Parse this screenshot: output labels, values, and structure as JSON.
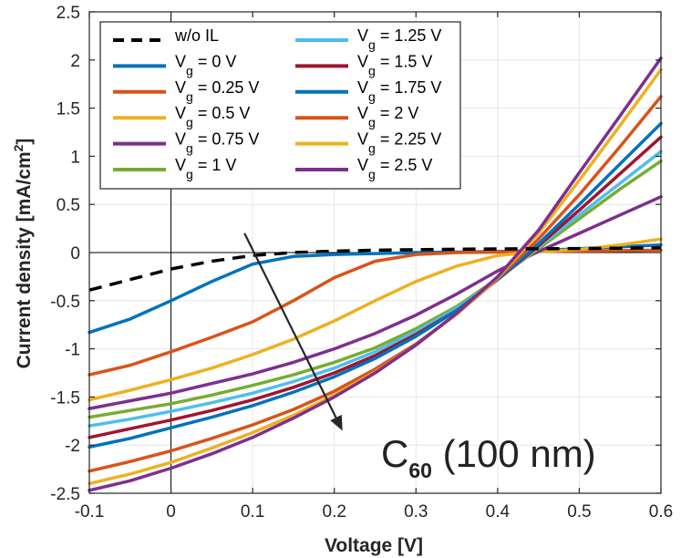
{
  "chart_data": {
    "type": "line",
    "title": "",
    "xlabel": "Voltage [V]",
    "ylabel": "Current density [mA/cm",
    "ylabel_sup": "2",
    "ylabel_end": "]",
    "xlim": [
      -0.1,
      0.6
    ],
    "ylim": [
      -2.5,
      2.5
    ],
    "xticks": [
      -0.1,
      0,
      0.1,
      0.2,
      0.3,
      0.4,
      0.5,
      0.6
    ],
    "yticks": [
      -2.5,
      -2,
      -1.5,
      -1,
      -0.5,
      0,
      0.5,
      1,
      1.5,
      2,
      2.5
    ],
    "xtick_labels": [
      "-0.1",
      "0",
      "0.1",
      "0.2",
      "0.3",
      "0.4",
      "0.5",
      "0.6"
    ],
    "ytick_labels": [
      "-2.5",
      "-2",
      "-1.5",
      "-1",
      "-0.5",
      "0",
      "0.5",
      "1",
      "1.5",
      "2",
      "2.5"
    ],
    "grid": true,
    "legend_position": "top-left",
    "annotation": {
      "text_main": "C",
      "text_sub": "60",
      "text_rest": " (100 nm)"
    },
    "arrow": {
      "from": [
        0.09,
        0.2
      ],
      "to": [
        0.21,
        -1.85
      ]
    },
    "x": [
      -0.1,
      -0.05,
      0,
      0.05,
      0.1,
      0.15,
      0.2,
      0.25,
      0.3,
      0.35,
      0.4,
      0.45,
      0.5,
      0.55,
      0.6
    ],
    "series": [
      {
        "name": "w/o IL",
        "label_main": "w/o IL",
        "label_sub": "",
        "label_rest": "",
        "color": "#000000",
        "dashed": true,
        "values": [
          -0.39,
          -0.28,
          -0.17,
          -0.09,
          -0.03,
          0.0,
          0.015,
          0.025,
          0.03,
          0.035,
          0.038,
          0.04,
          0.042,
          0.045,
          0.05
        ]
      },
      {
        "name": "Vg = 0 V",
        "label_main": "V",
        "label_sub": "g",
        "label_rest": " = 0 V",
        "color": "#0072BD",
        "dashed": false,
        "values": [
          -0.83,
          -0.69,
          -0.5,
          -0.3,
          -0.12,
          -0.04,
          -0.02,
          -0.01,
          0.0,
          0.005,
          0.01,
          0.02,
          0.04,
          0.06,
          0.08
        ]
      },
      {
        "name": "Vg = 0.25 V",
        "label_main": "V",
        "label_sub": "g",
        "label_rest": " = 0.25 V",
        "color": "#D95319",
        "dashed": false,
        "values": [
          -1.27,
          -1.17,
          -1.03,
          -0.88,
          -0.72,
          -0.5,
          -0.26,
          -0.09,
          -0.02,
          0.0,
          0.005,
          0.01,
          0.015,
          0.02,
          0.025
        ]
      },
      {
        "name": "Vg = 0.5 V",
        "label_main": "V",
        "label_sub": "g",
        "label_rest": " = 0.5 V",
        "color": "#EDB120",
        "dashed": false,
        "values": [
          -1.53,
          -1.43,
          -1.32,
          -1.2,
          -1.06,
          -0.9,
          -0.71,
          -0.5,
          -0.3,
          -0.14,
          -0.03,
          0.01,
          0.03,
          0.08,
          0.14
        ]
      },
      {
        "name": "Vg = 0.75 V",
        "label_main": "V",
        "label_sub": "g",
        "label_rest": " = 0.75 V",
        "color": "#7E2F8E",
        "dashed": false,
        "values": [
          -1.62,
          -1.54,
          -1.46,
          -1.36,
          -1.26,
          -1.14,
          -1.0,
          -0.84,
          -0.65,
          -0.43,
          -0.19,
          0.01,
          0.2,
          0.39,
          0.58
        ]
      },
      {
        "name": "Vg = 1 V",
        "label_main": "V",
        "label_sub": "g",
        "label_rest": " = 1 V",
        "color": "#77AC30",
        "dashed": false,
        "values": [
          -1.71,
          -1.64,
          -1.57,
          -1.48,
          -1.38,
          -1.27,
          -1.14,
          -0.99,
          -0.79,
          -0.56,
          -0.27,
          0.04,
          0.35,
          0.66,
          0.95
        ]
      },
      {
        "name": "Vg = 1.25 V",
        "label_main": "V",
        "label_sub": "g",
        "label_rest": " = 1.25 V",
        "color": "#4DBEEE",
        "dashed": false,
        "values": [
          -1.8,
          -1.73,
          -1.65,
          -1.56,
          -1.46,
          -1.34,
          -1.2,
          -1.03,
          -0.82,
          -0.58,
          -0.28,
          0.06,
          0.39,
          0.72,
          1.05
        ]
      },
      {
        "name": "Vg = 1.5 V",
        "label_main": "V",
        "label_sub": "g",
        "label_rest": " = 1.5 V",
        "color": "#A2142F",
        "dashed": false,
        "values": [
          -1.92,
          -1.83,
          -1.74,
          -1.64,
          -1.53,
          -1.4,
          -1.25,
          -1.07,
          -0.85,
          -0.6,
          -0.28,
          0.07,
          0.44,
          0.82,
          1.2
        ]
      },
      {
        "name": "Vg = 1.75 V",
        "label_main": "V",
        "label_sub": "g",
        "label_rest": " = 1.75 V",
        "color": "#0072BD",
        "dashed": false,
        "values": [
          -2.02,
          -1.93,
          -1.82,
          -1.71,
          -1.59,
          -1.45,
          -1.29,
          -1.1,
          -0.87,
          -0.6,
          -0.28,
          0.09,
          0.5,
          0.92,
          1.34
        ]
      },
      {
        "name": "Vg = 2 V",
        "label_main": "V",
        "label_sub": "g",
        "label_rest": " = 2 V",
        "color": "#D95319",
        "dashed": false,
        "values": [
          -2.27,
          -2.17,
          -2.06,
          -1.93,
          -1.79,
          -1.63,
          -1.44,
          -1.21,
          -0.95,
          -0.64,
          -0.27,
          0.14,
          0.6,
          1.1,
          1.62
        ]
      },
      {
        "name": "Vg = 2.25 V",
        "label_main": "V",
        "label_sub": "g",
        "label_rest": " = 2.25 V",
        "color": "#EDB120",
        "dashed": false,
        "values": [
          -2.4,
          -2.3,
          -2.18,
          -2.03,
          -1.87,
          -1.69,
          -1.48,
          -1.24,
          -0.96,
          -0.64,
          -0.26,
          0.2,
          0.75,
          1.32,
          1.9
        ]
      },
      {
        "name": "Vg = 2.5 V",
        "label_main": "V",
        "label_sub": "g",
        "label_rest": " = 2.5 V",
        "color": "#7E2F8E",
        "dashed": false,
        "values": [
          -2.47,
          -2.37,
          -2.24,
          -2.09,
          -1.92,
          -1.72,
          -1.5,
          -1.25,
          -0.96,
          -0.63,
          -0.25,
          0.23,
          0.83,
          1.42,
          2.02
        ]
      }
    ]
  }
}
